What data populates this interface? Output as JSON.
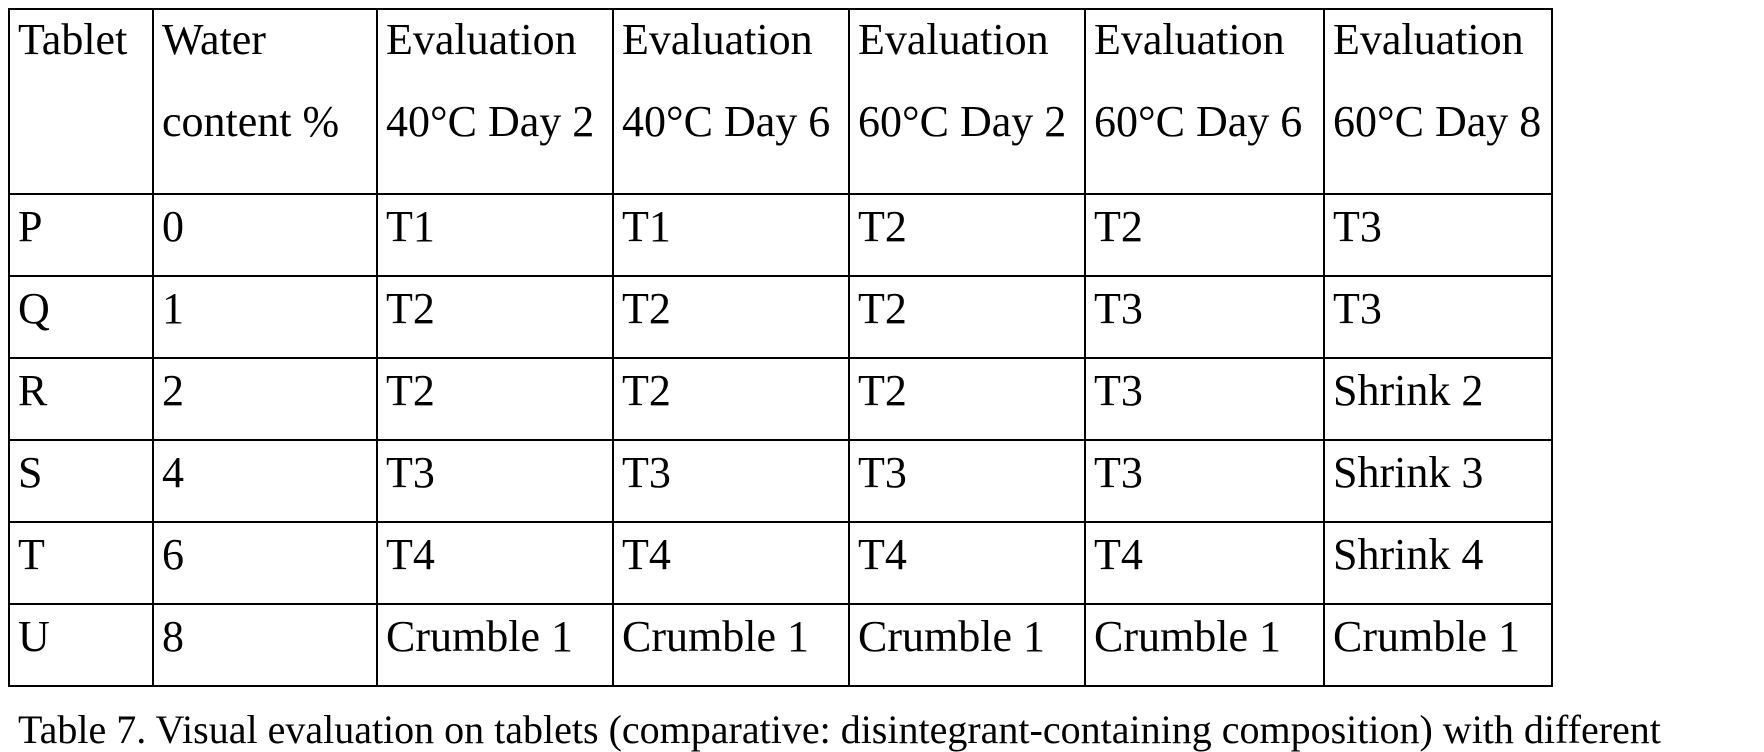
{
  "table": {
    "headers": [
      [
        "Tablet",
        ""
      ],
      [
        "Water",
        "content %"
      ],
      [
        "Evaluation",
        "40°C Day 2"
      ],
      [
        "Evaluation",
        "40°C Day 6"
      ],
      [
        "Evaluation",
        "60°C Day 2"
      ],
      [
        "Evaluation",
        "60°C Day 6"
      ],
      [
        "Evaluation",
        "60°C Day 8"
      ]
    ],
    "rows": [
      [
        "P",
        "0",
        "T1",
        "T1",
        "T2",
        "T2",
        "T3"
      ],
      [
        "Q",
        "1",
        "T2",
        "T2",
        "T2",
        "T3",
        "T3"
      ],
      [
        "R",
        "2",
        "T2",
        "T2",
        "T2",
        "T3",
        "Shrink 2"
      ],
      [
        "S",
        "4",
        "T3",
        "T3",
        "T3",
        "T3",
        "Shrink 3"
      ],
      [
        "T",
        "6",
        "T4",
        "T4",
        "T4",
        "T4",
        "Shrink 4"
      ],
      [
        "U",
        "8",
        "Crumble 1",
        "Crumble 1",
        "Crumble 1",
        "Crumble 1",
        "Crumble 1"
      ]
    ]
  },
  "caption": "Table 7. Visual evaluation on tablets (comparative: disintegrant-containing composition) with different"
}
